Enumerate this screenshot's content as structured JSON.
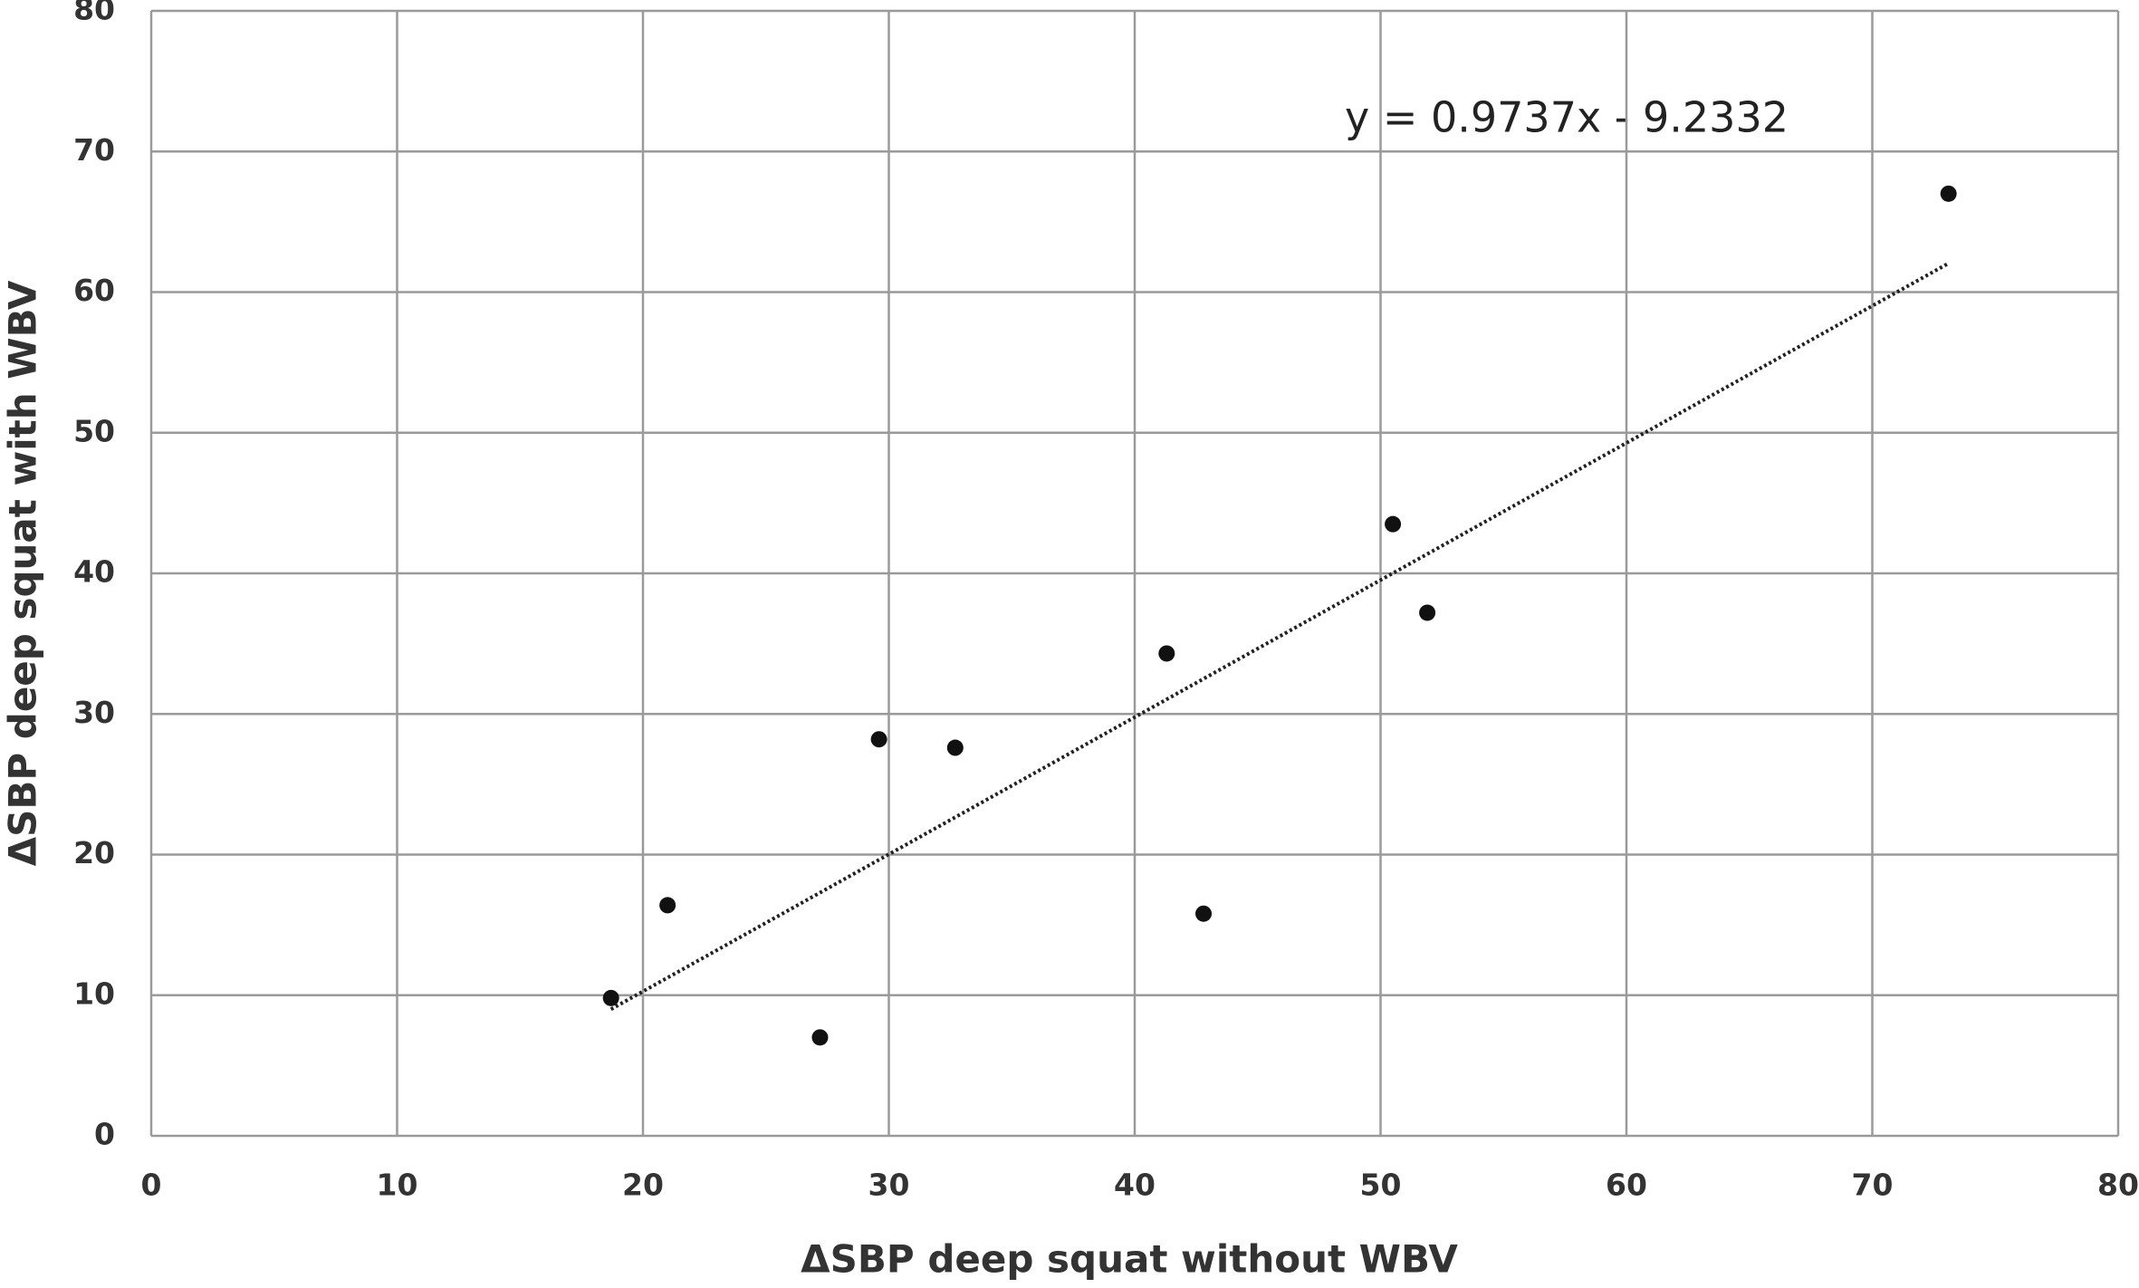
{
  "chart_data": {
    "type": "scatter",
    "x_label": "ΔSBP deep squat without WBV",
    "y_label": "ΔSBP deep squat with WBV",
    "annotation": "y = 0.9737x - 9.2332",
    "x": [
      18.7,
      21.0,
      27.2,
      29.6,
      32.7,
      41.3,
      42.8,
      50.5,
      51.9,
      73.1
    ],
    "values": [
      9.8,
      16.4,
      7.0,
      28.2,
      27.6,
      34.3,
      15.8,
      43.5,
      37.2,
      67.0
    ],
    "color": "#111111",
    "trendline": true,
    "xlim": [
      0,
      80
    ],
    "xticks": [
      0,
      10,
      20,
      30,
      40,
      50,
      60,
      70,
      80
    ],
    "ylim": [
      0,
      80
    ],
    "yticks": [
      0,
      10,
      20,
      30,
      40,
      50,
      60,
      70,
      80
    ],
    "grid": true
  }
}
